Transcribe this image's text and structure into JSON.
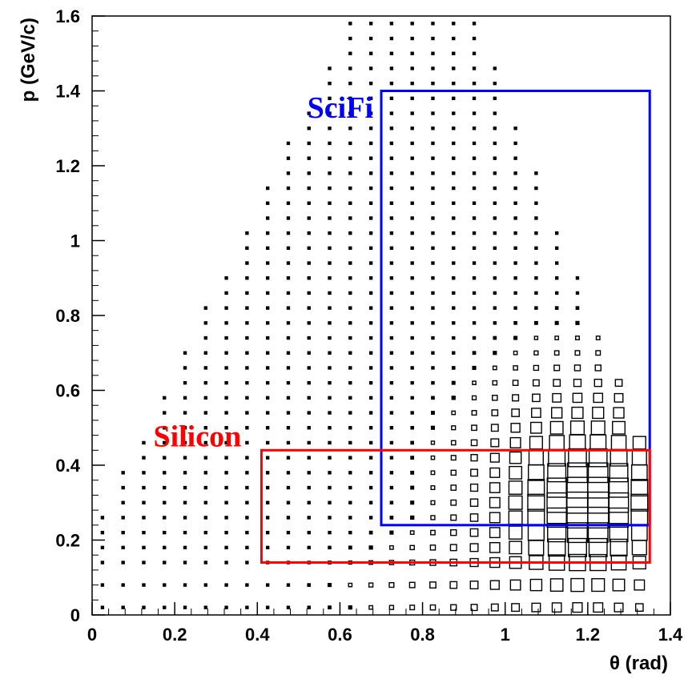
{
  "chart_data": {
    "type": "box-histogram-2d",
    "xlabel": "θ (rad)",
    "ylabel": "p (GeV/c)",
    "xlim": [
      0,
      1.4
    ],
    "ylim": [
      0,
      1.6
    ],
    "x_ticks": [
      "0",
      "0.2",
      "0.4",
      "0.6",
      "0.8",
      "1",
      "1.2",
      "1.4"
    ],
    "y_ticks": [
      "0",
      "0.2",
      "0.4",
      "0.6",
      "0.8",
      "1",
      "1.2",
      "1.4",
      "1.6"
    ],
    "x_tick_values": [
      0,
      0.2,
      0.4,
      0.6,
      0.8,
      1.0,
      1.2,
      1.4
    ],
    "y_tick_values": [
      0,
      0.2,
      0.4,
      0.6,
      0.8,
      1.0,
      1.2,
      1.4,
      1.6
    ],
    "grid": false,
    "regions": [
      {
        "label": "SciFi",
        "color": "#0000ff",
        "x_range": [
          0.7,
          1.35
        ],
        "y_range": [
          0.24,
          1.4
        ]
      },
      {
        "label": "Silicon",
        "color": "#ff0000",
        "x_range": [
          0.41,
          1.35
        ],
        "y_range": [
          0.14,
          0.44
        ]
      }
    ],
    "histogram": {
      "bin_x_centers": [
        0.025,
        0.075,
        0.125,
        0.175,
        0.225,
        0.275,
        0.325,
        0.375,
        0.425,
        0.475,
        0.525,
        0.575,
        0.625,
        0.675,
        0.725,
        0.775,
        0.825,
        0.875,
        0.925,
        0.975,
        1.025,
        1.075,
        1.125,
        1.175,
        1.225,
        1.275,
        1.325
      ],
      "bin_y_centers": [
        0.02,
        0.08,
        0.14,
        0.18,
        0.22,
        0.26,
        0.3,
        0.34,
        0.38,
        0.42,
        0.46,
        0.5,
        0.54,
        0.58,
        0.62,
        0.66,
        0.7,
        0.74,
        0.78,
        0.82,
        0.86,
        0.9,
        0.94,
        0.98,
        1.02,
        1.06,
        1.1,
        1.14,
        1.18,
        1.22,
        1.26,
        1.3,
        1.34,
        1.38,
        1.42,
        1.46,
        1.5,
        1.54,
        1.58
      ],
      "relative_box_size_scale": "box side proportional to bin content",
      "peak_bin": {
        "x": 1.225,
        "y": 0.3
      }
    }
  }
}
